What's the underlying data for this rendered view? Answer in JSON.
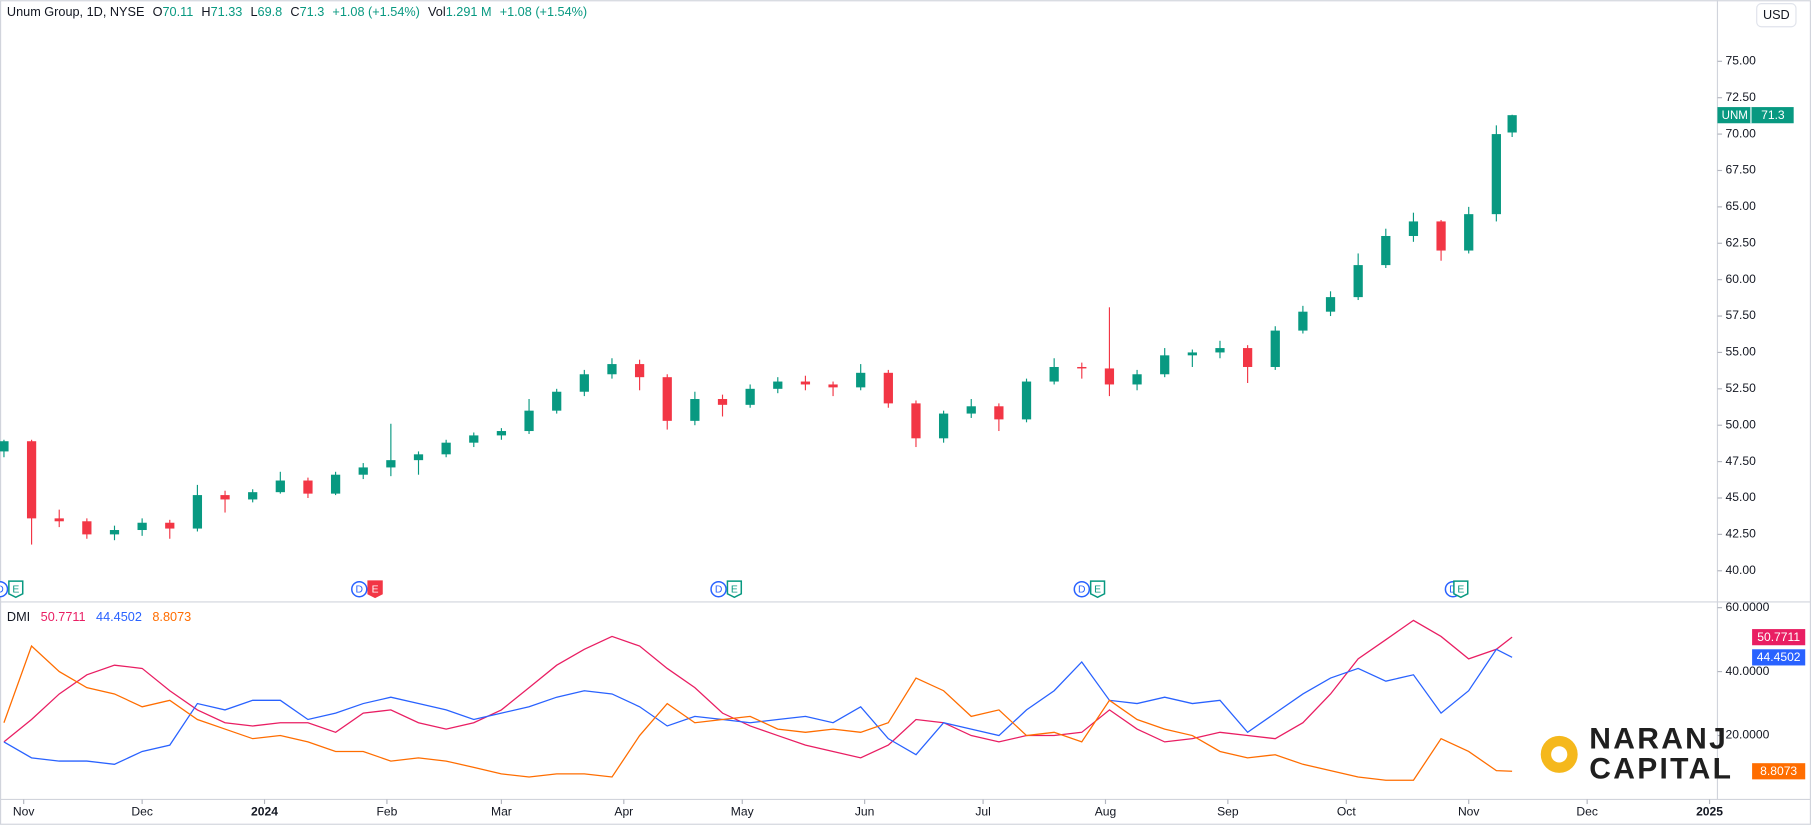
{
  "chart_data": [
    {
      "type": "candlestick",
      "title": "Unum Group, 1D, NYSE",
      "ohlc_labels": [
        "O",
        "H",
        "L",
        "C"
      ],
      "change": "+1.08 (+1.54%)",
      "volume_label": "Vol",
      "volume": "1.291 M",
      "currency": "USD",
      "symbol": "UNM",
      "up_color": "#089981",
      "down_color": "#f23645",
      "x": [
        "2023-10-27",
        "2023-11-03",
        "2023-11-10",
        "2023-11-17",
        "2023-11-24",
        "2023-12-01",
        "2023-12-08",
        "2023-12-15",
        "2023-12-22",
        "2023-12-29",
        "2024-01-05",
        "2024-01-12",
        "2024-01-19",
        "2024-01-26",
        "2024-02-02",
        "2024-02-09",
        "2024-02-16",
        "2024-02-23",
        "2024-03-01",
        "2024-03-08",
        "2024-03-15",
        "2024-03-22",
        "2024-03-29",
        "2024-04-05",
        "2024-04-12",
        "2024-04-19",
        "2024-04-26",
        "2024-05-03",
        "2024-05-10",
        "2024-05-17",
        "2024-05-24",
        "2024-05-31",
        "2024-06-07",
        "2024-06-14",
        "2024-06-21",
        "2024-06-28",
        "2024-07-05",
        "2024-07-12",
        "2024-07-19",
        "2024-07-26",
        "2024-08-02",
        "2024-08-09",
        "2024-08-16",
        "2024-08-23",
        "2024-08-30",
        "2024-09-06",
        "2024-09-13",
        "2024-09-20",
        "2024-09-27",
        "2024-10-04",
        "2024-10-11",
        "2024-10-18",
        "2024-10-25",
        "2024-11-01",
        "2024-11-08",
        "2024-11-12"
      ],
      "open": [
        48.2,
        48.9,
        43.6,
        43.4,
        42.5,
        42.8,
        43.3,
        42.9,
        45.2,
        44.9,
        45.4,
        46.2,
        45.3,
        46.6,
        47.1,
        47.6,
        48.0,
        48.8,
        49.3,
        49.6,
        51.0,
        52.3,
        53.5,
        54.2,
        53.3,
        50.3,
        51.8,
        51.4,
        52.5,
        53.0,
        52.8,
        52.6,
        53.6,
        51.5,
        49.1,
        50.8,
        51.3,
        50.4,
        53.0,
        54.0,
        53.9,
        52.8,
        53.5,
        54.8,
        55.0,
        55.3,
        54.0,
        56.5,
        57.8,
        58.8,
        61.0,
        63.0,
        64.0,
        62.0,
        64.5,
        70.11
      ],
      "high": [
        49.0,
        49.0,
        44.2,
        43.6,
        43.1,
        43.6,
        43.5,
        45.9,
        45.5,
        45.6,
        46.8,
        46.4,
        46.8,
        47.4,
        50.1,
        48.2,
        49.0,
        49.5,
        49.8,
        51.8,
        52.5,
        53.8,
        54.6,
        54.5,
        53.5,
        52.3,
        52.1,
        52.8,
        53.3,
        53.4,
        53.0,
        54.2,
        53.8,
        51.7,
        51.0,
        51.8,
        51.5,
        53.2,
        54.6,
        54.3,
        58.1,
        53.8,
        55.3,
        55.2,
        55.8,
        55.5,
        56.8,
        58.2,
        59.2,
        61.8,
        63.5,
        64.6,
        64.1,
        65.0,
        70.6,
        71.33
      ],
      "low": [
        47.8,
        41.8,
        43.0,
        42.2,
        42.1,
        42.4,
        42.2,
        42.7,
        44.0,
        44.7,
        45.3,
        45.0,
        45.2,
        46.3,
        46.5,
        46.6,
        47.8,
        48.5,
        49.0,
        49.4,
        50.8,
        52.0,
        53.2,
        52.4,
        49.7,
        50.0,
        50.6,
        51.2,
        52.2,
        52.4,
        52.0,
        52.4,
        51.2,
        48.5,
        48.8,
        50.5,
        49.6,
        50.2,
        52.8,
        53.2,
        52.0,
        52.4,
        53.3,
        54.0,
        54.6,
        52.9,
        53.8,
        56.3,
        57.5,
        58.6,
        60.8,
        62.6,
        61.3,
        61.8,
        64.0,
        69.8
      ],
      "close": [
        48.9,
        43.6,
        43.4,
        42.5,
        42.8,
        43.3,
        42.9,
        45.2,
        44.9,
        45.4,
        46.2,
        45.3,
        46.6,
        47.1,
        47.6,
        48.0,
        48.8,
        49.3,
        49.6,
        51.0,
        52.3,
        53.5,
        54.2,
        53.3,
        50.3,
        51.8,
        51.4,
        52.5,
        53.0,
        52.8,
        52.6,
        53.6,
        51.5,
        49.1,
        50.8,
        51.3,
        50.4,
        53.0,
        54.0,
        53.9,
        52.8,
        53.5,
        54.8,
        55.0,
        55.3,
        54.0,
        56.5,
        57.8,
        58.8,
        61.0,
        63.0,
        64.0,
        62.0,
        64.5,
        70.0,
        71.3
      ],
      "xlim": [
        "2023-10-26",
        "2025-01-03"
      ],
      "xticks": [
        {
          "value": "2023-11-01",
          "label": "Nov"
        },
        {
          "value": "2023-12-01",
          "label": "Dec"
        },
        {
          "value": "2024-01-01",
          "label": "2024"
        },
        {
          "value": "2024-02-01",
          "label": "Feb"
        },
        {
          "value": "2024-03-01",
          "label": "Mar"
        },
        {
          "value": "2024-04-01",
          "label": "Apr"
        },
        {
          "value": "2024-05-01",
          "label": "May"
        },
        {
          "value": "2024-06-01",
          "label": "Jun"
        },
        {
          "value": "2024-07-01",
          "label": "Jul"
        },
        {
          "value": "2024-08-01",
          "label": "Aug"
        },
        {
          "value": "2024-09-01",
          "label": "Sep"
        },
        {
          "value": "2024-10-01",
          "label": "Oct"
        },
        {
          "value": "2024-11-01",
          "label": "Nov"
        },
        {
          "value": "2024-12-01",
          "label": "Dec"
        },
        {
          "value": "2025-01-01",
          "label": "2025"
        }
      ],
      "ylim": [
        37.94,
        79.2
      ],
      "yticks": [
        {
          "value": 40,
          "label": "40.00"
        },
        {
          "value": 42.5,
          "label": "42.50"
        },
        {
          "value": 45,
          "label": "45.00"
        },
        {
          "value": 47.5,
          "label": "47.50"
        },
        {
          "value": 50,
          "label": "50.00"
        },
        {
          "value": 52.5,
          "label": "52.50"
        },
        {
          "value": 55,
          "label": "55.00"
        },
        {
          "value": 57.5,
          "label": "57.50"
        },
        {
          "value": 60,
          "label": "60.00"
        },
        {
          "value": 62.5,
          "label": "62.50"
        },
        {
          "value": 65,
          "label": "65.00"
        },
        {
          "value": 67.5,
          "label": "67.50"
        },
        {
          "value": 70,
          "label": "70.00"
        },
        {
          "value": 72.5,
          "label": "72.50"
        },
        {
          "value": 75,
          "label": "75.00"
        }
      ],
      "grid": false,
      "events": [
        {
          "x": "2023-10-26",
          "label": "D",
          "color": "#2962ff"
        },
        {
          "x": "2023-10-30",
          "label": "E",
          "color": "#089981"
        },
        {
          "x": "2024-01-25",
          "label": "D",
          "color": "#2962ff"
        },
        {
          "x": "2024-01-29",
          "label": "E",
          "color": "#f23645"
        },
        {
          "x": "2024-04-25",
          "label": "D",
          "color": "#2962ff"
        },
        {
          "x": "2024-04-29",
          "label": "E",
          "color": "#089981"
        },
        {
          "x": "2024-07-26",
          "label": "D",
          "color": "#2962ff"
        },
        {
          "x": "2024-07-30",
          "label": "E",
          "color": "#089981"
        },
        {
          "x": "2024-10-28",
          "label": "D",
          "color": "#2962ff"
        },
        {
          "x": "2024-10-30",
          "label": "E",
          "color": "#089981"
        }
      ]
    },
    {
      "type": "line",
      "title": "DMI",
      "x": [
        "2023-10-27",
        "2023-11-03",
        "2023-11-10",
        "2023-11-17",
        "2023-11-24",
        "2023-12-01",
        "2023-12-08",
        "2023-12-15",
        "2023-12-22",
        "2023-12-29",
        "2024-01-05",
        "2024-01-12",
        "2024-01-19",
        "2024-01-26",
        "2024-02-02",
        "2024-02-09",
        "2024-02-16",
        "2024-02-23",
        "2024-03-01",
        "2024-03-08",
        "2024-03-15",
        "2024-03-22",
        "2024-03-29",
        "2024-04-05",
        "2024-04-12",
        "2024-04-19",
        "2024-04-26",
        "2024-05-03",
        "2024-05-10",
        "2024-05-17",
        "2024-05-24",
        "2024-05-31",
        "2024-06-07",
        "2024-06-14",
        "2024-06-21",
        "2024-06-28",
        "2024-07-05",
        "2024-07-12",
        "2024-07-19",
        "2024-07-26",
        "2024-08-02",
        "2024-08-09",
        "2024-08-16",
        "2024-08-23",
        "2024-08-30",
        "2024-09-06",
        "2024-09-13",
        "2024-09-20",
        "2024-09-27",
        "2024-10-04",
        "2024-10-11",
        "2024-10-18",
        "2024-10-25",
        "2024-11-01",
        "2024-11-08",
        "2024-11-12"
      ],
      "series": [
        {
          "color": "#e91e63",
          "values": [
            18,
            25,
            33,
            39,
            42,
            41,
            34,
            28,
            24,
            23,
            24,
            24,
            21,
            27,
            28,
            24,
            22,
            24,
            28,
            35,
            42,
            47,
            51,
            48,
            41,
            35,
            27,
            23,
            20,
            17,
            15,
            13,
            17,
            25,
            24,
            20,
            18,
            20,
            20,
            21,
            28,
            22,
            18,
            19,
            21,
            20,
            19,
            24,
            33,
            44,
            50,
            56,
            51,
            44,
            47,
            50.7711
          ]
        },
        {
          "color": "#2962ff",
          "values": [
            18,
            13,
            12,
            12,
            11,
            15,
            17,
            30,
            28,
            31,
            31,
            25,
            27,
            30,
            32,
            30,
            28,
            25,
            27,
            29,
            32,
            34,
            33,
            29,
            23,
            26,
            25,
            24,
            25,
            26,
            24,
            29,
            19,
            14,
            24,
            22,
            20,
            28,
            34,
            43,
            31,
            30,
            32,
            30,
            31,
            21,
            27,
            33,
            38,
            41,
            37,
            39,
            27,
            34,
            47,
            44.4502
          ]
        },
        {
          "color": "#ff6d00",
          "values": [
            24,
            48,
            40,
            35,
            33,
            29,
            31,
            25,
            22,
            19,
            20,
            18,
            15,
            15,
            12,
            13,
            12,
            10,
            8,
            7,
            8,
            8,
            7,
            20,
            30,
            24,
            25,
            26,
            22,
            21,
            22,
            21,
            24,
            38,
            34,
            26,
            28,
            20,
            21,
            18,
            31,
            25,
            22,
            20,
            15,
            13,
            14,
            11,
            9,
            7,
            6,
            6,
            19,
            15,
            9,
            8.8073
          ]
        }
      ],
      "xlim": [
        "2023-10-26",
        "2025-01-03"
      ],
      "ylim": [
        0,
        61.8
      ],
      "yticks": [
        {
          "value": 20,
          "label": "20.0000"
        },
        {
          "value": 40,
          "label": "40.0000"
        },
        {
          "value": 60,
          "label": "60.0000"
        }
      ]
    }
  ],
  "logo": [
    "NARANJ",
    "CAPITAL"
  ]
}
